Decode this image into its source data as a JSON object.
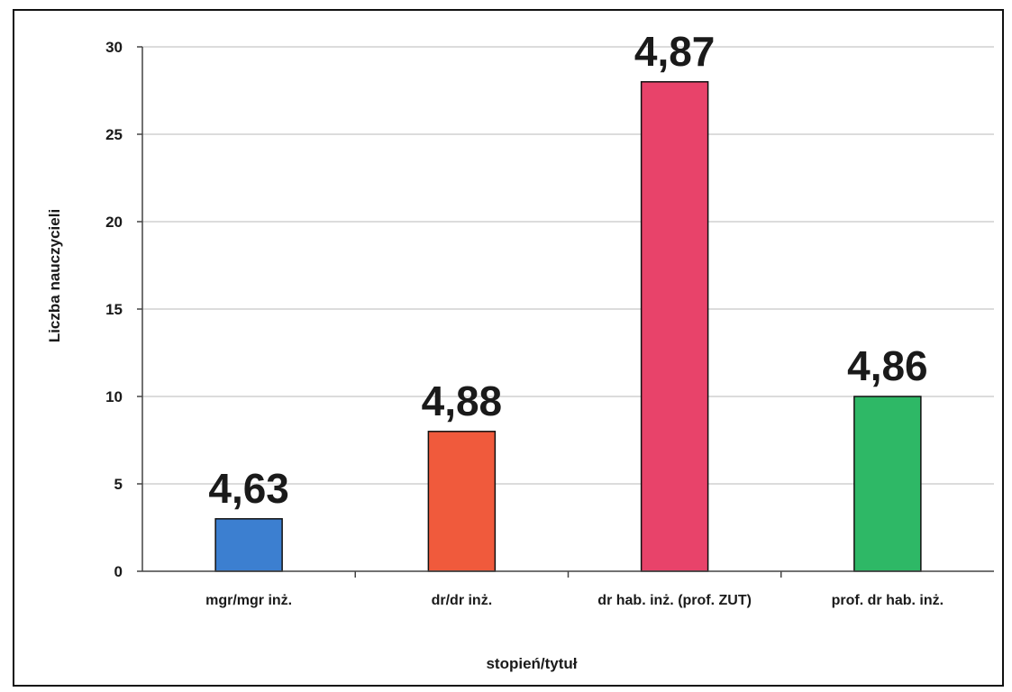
{
  "chart_data": {
    "type": "bar",
    "title": "",
    "xlabel": "stopień/tytuł",
    "ylabel": "Liczba nauczycieli",
    "categories": [
      "mgr/mgr inż.",
      "dr/dr inż.",
      "dr hab. inż. (prof. ZUT)",
      "prof. dr hab. inż."
    ],
    "values": [
      3,
      8,
      28,
      10
    ],
    "data_labels": [
      "4,63",
      "4,88",
      "4,87",
      "4,86"
    ],
    "bar_colors": [
      "#3c7fd0",
      "#f05a3c",
      "#e8436a",
      "#2eb866"
    ],
    "ylim": [
      0,
      30
    ],
    "yticks": [
      0,
      5,
      10,
      15,
      20,
      25,
      30
    ],
    "grid": true,
    "legend": "none"
  }
}
